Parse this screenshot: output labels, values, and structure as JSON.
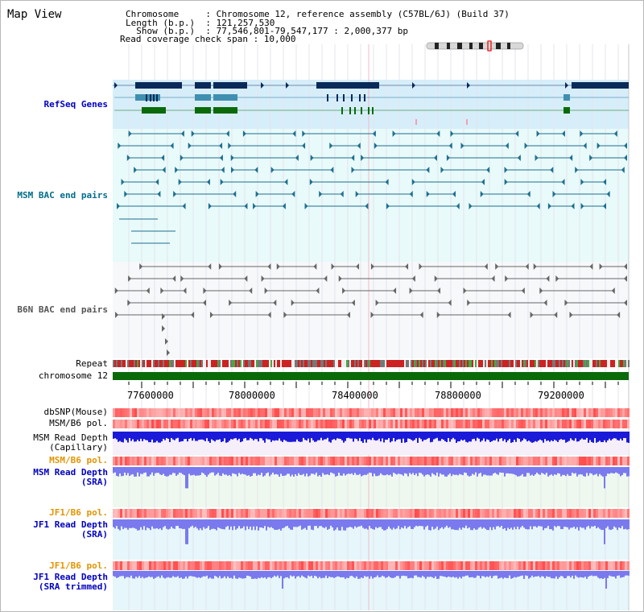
{
  "view": {
    "title": "Map View",
    "info_lines": [
      "Chromosome     : Chromosome 12, reference assembly (C57BL/6J) (Build 37)",
      "Length (b.p.)  : 121,257,530",
      "  Show (b.p.)  : 77,546,801-79,547,177 : 2,000,377 bp",
      "Read coverage check span : 10,000"
    ]
  },
  "tracks": {
    "refseq": "RefSeq Genes",
    "msm_bac": "MSM BAC end pairs",
    "b6n_bac": "B6N BAC end pairs",
    "repeat": "Repeat",
    "chromosome": "chromosome 12",
    "dbsnp": "dbSNP(Mouse)",
    "msm_b6_pol": "MSM/B6 pol.",
    "msm_depth_cap_1": "MSM Read Depth",
    "msm_depth_cap_2": "(Capillary)",
    "msm_b6_pol_2": "MSM/B6 pol.",
    "msm_depth_sra_1": "MSM Read Depth",
    "msm_depth_sra_2": "(SRA)",
    "jf1_b6_pol": "JF1/B6 pol.",
    "jf1_depth_sra_1": "JF1 Read Depth",
    "jf1_depth_sra_2": "(SRA)",
    "jf1_b6_pol_2": "JF1/B6 pol.",
    "jf1_depth_trim_1": "JF1 Read Depth",
    "jf1_depth_trim_2": "(SRA trimmed)"
  },
  "axis": {
    "ticks": [
      "77600000",
      "78000000",
      "78400000",
      "78800000",
      "79200000"
    ]
  },
  "colors": {
    "refseq_bg": "#d6eefa",
    "bac_bg": "#e8fafa",
    "b6n_bg": "#f6f8fa",
    "gene_dark": "#0a2a5a",
    "gene_mid": "#3f8fb0",
    "gene_green": "#0a6a0a",
    "msm_feature": "#1f6f8f",
    "b6n_feature": "#666666",
    "chromosome": "#0a6a0a",
    "pol": "#ee4444",
    "depth_cap": "#1a1ad8",
    "depth_sra": "#7a7aee"
  }
}
